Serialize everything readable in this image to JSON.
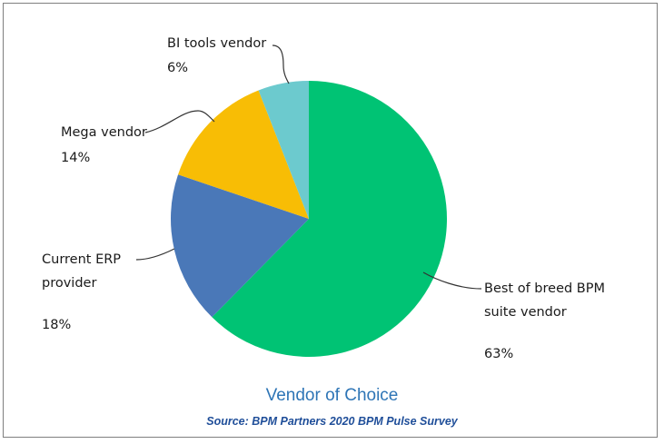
{
  "chart_data": {
    "type": "pie",
    "title": "Vendor of Choice",
    "source": "Source: BPM Partners 2020 BPM Pulse Survey",
    "start_angle_deg": 0,
    "direction": "clockwise",
    "slices": [
      {
        "key": "best",
        "label_lines": [
          "Best of breed BPM",
          "suite vendor"
        ],
        "value": 63,
        "display": "63%",
        "color": "#00c374"
      },
      {
        "key": "erp",
        "label_lines": [
          "Current ERP",
          "provider"
        ],
        "value": 18,
        "display": "18%",
        "color": "#4a78b8"
      },
      {
        "key": "mega",
        "label_lines": [
          "Mega vendor"
        ],
        "value": 14,
        "display": "14%",
        "color": "#f8bd05"
      },
      {
        "key": "bi",
        "label_lines": [
          "BI tools vendor"
        ],
        "value": 6,
        "display": "6%",
        "color": "#6ccace"
      }
    ]
  }
}
